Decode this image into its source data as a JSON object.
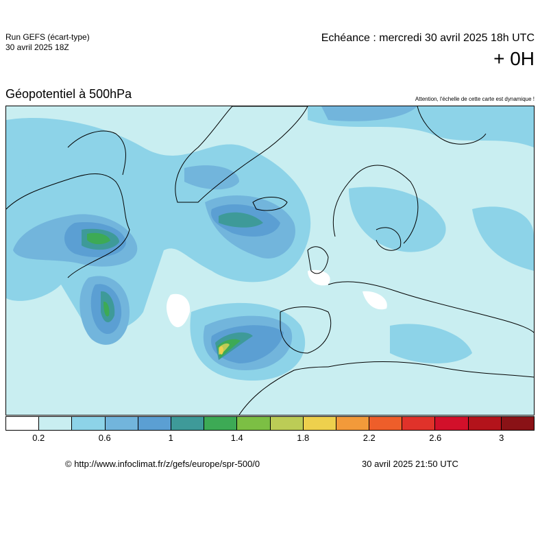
{
  "header": {
    "run_title": "Run GEFS (écart-type)",
    "run_date": "30 avril 2025 18Z",
    "echeance": "Echéance : mercredi 30 avril 2025 18h UTC",
    "offset": "+ 0H"
  },
  "map": {
    "title": "Géopotentiel à 500hPa",
    "note": "Attention, l'échelle de cette carte est dynamique !",
    "base_color": "#c9eef1",
    "coast_color": "#000000"
  },
  "legend": {
    "colors": [
      "#ffffff",
      "#c9eef1",
      "#8dd3e8",
      "#72b5dc",
      "#5b9fd3",
      "#3e9a99",
      "#3daa55",
      "#7cbf44",
      "#bccc56",
      "#eed04d",
      "#f29a3a",
      "#ee5e2a",
      "#e0322a",
      "#d2102a",
      "#b3131b",
      "#8a1216"
    ],
    "labels": [
      "0.2",
      "0.6",
      "1",
      "1.4",
      "1.8",
      "2.2",
      "2.6",
      "3"
    ]
  },
  "footer": {
    "source": "© http://www.infoclimat.fr/z/gefs/europe/spr-500/0",
    "generated": "30 avril 2025 21:50 UTC"
  }
}
